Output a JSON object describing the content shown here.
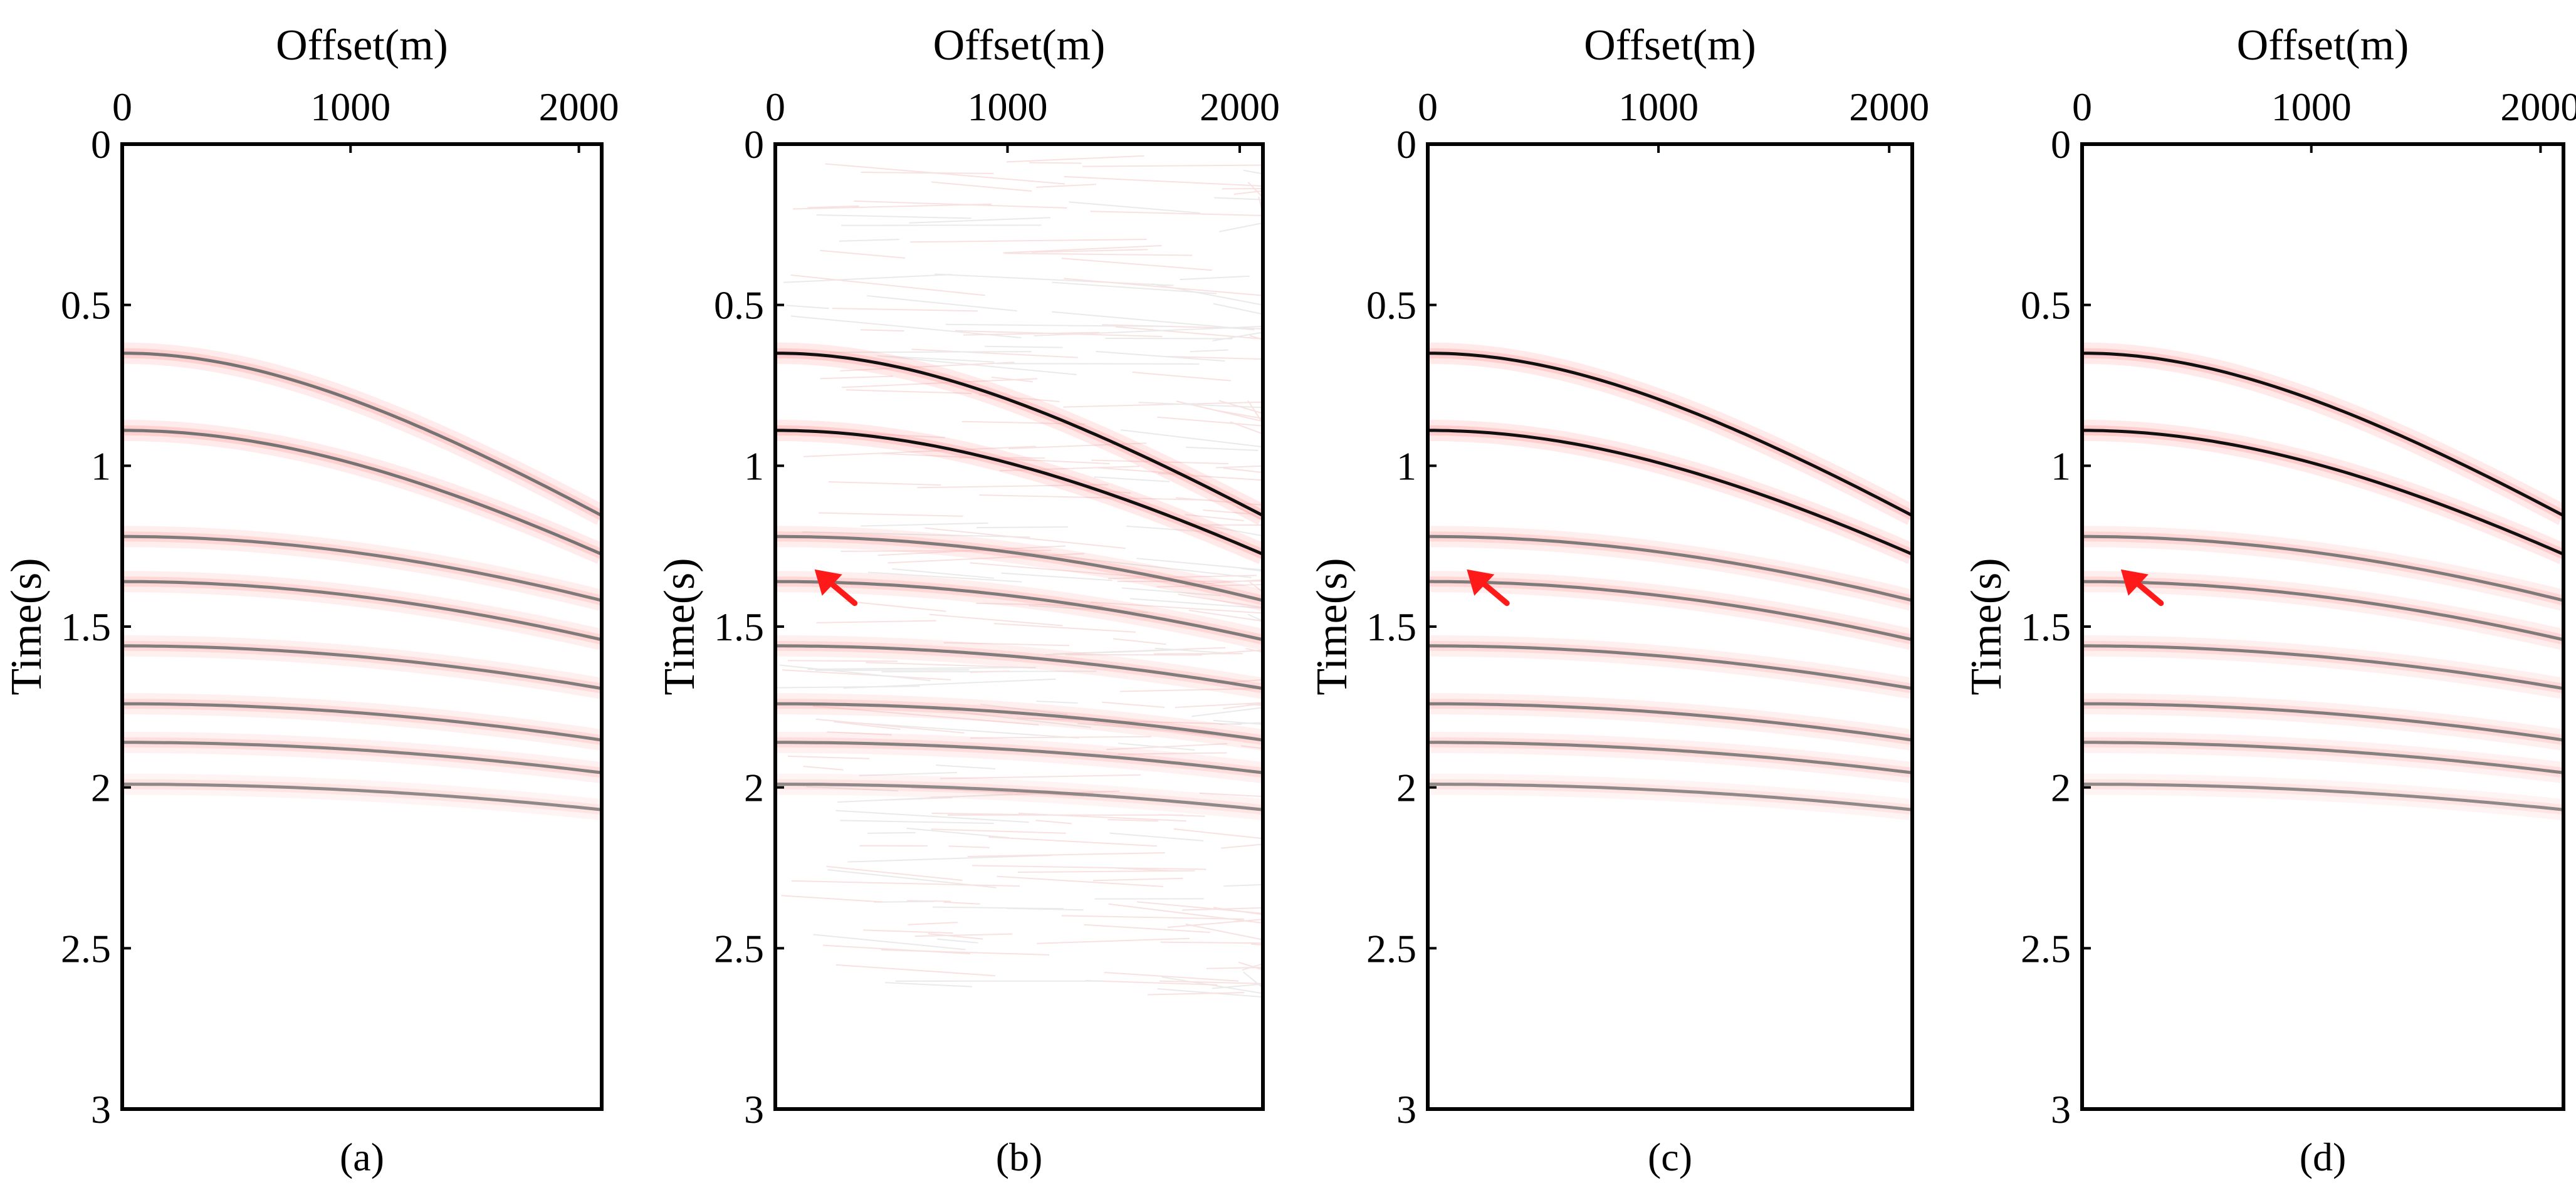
{
  "figure": {
    "panel_labels": [
      "(a)",
      "(b)",
      "(c)",
      "(d)"
    ]
  },
  "colors": {
    "trace_dark": "#111111",
    "trace_mid": "#6f6f6f",
    "side_lobe": "#ff9a9a",
    "arrow": "#ff1a1a",
    "frame": "#000000"
  },
  "chart_data": [
    {
      "type": "heatmap",
      "panel": "(a)",
      "xlabel": "Offset(m)",
      "ylabel": "Time(s)",
      "x_axis_position": "top",
      "xlim": [
        0,
        2100
      ],
      "ylim": [
        3.0,
        0
      ],
      "xticks": [
        0,
        1000,
        2000
      ],
      "yticks": [
        0,
        0.5,
        1,
        1.5,
        2,
        2.5,
        3
      ],
      "grid": false,
      "noise": false,
      "events": [
        {
          "t0": 0.65,
          "v": 2200,
          "strength": 0.9
        },
        {
          "t0": 0.89,
          "v": 2300,
          "strength": 0.9
        },
        {
          "t0": 1.22,
          "v": 2900,
          "strength": 0.75
        },
        {
          "t0": 1.36,
          "v": 2900,
          "strength": 0.75
        },
        {
          "t0": 1.56,
          "v": 3200,
          "strength": 0.7
        },
        {
          "t0": 1.74,
          "v": 3300,
          "strength": 0.7
        },
        {
          "t0": 1.86,
          "v": 3500,
          "strength": 0.65
        },
        {
          "t0": 1.99,
          "v": 3700,
          "strength": 0.5
        }
      ],
      "annotations": []
    },
    {
      "type": "heatmap",
      "panel": "(b)",
      "xlabel": "Offset(m)",
      "ylabel": "Time(s)",
      "x_axis_position": "top",
      "xlim": [
        0,
        2100
      ],
      "ylim": [
        3.0,
        0
      ],
      "xticks": [
        0,
        1000,
        2000
      ],
      "yticks": [
        0,
        0.5,
        1,
        1.5,
        2,
        2.5,
        3
      ],
      "grid": false,
      "noise": true,
      "events": [
        {
          "t0": 0.65,
          "v": 2200,
          "strength": 1.0
        },
        {
          "t0": 0.89,
          "v": 2300,
          "strength": 1.0
        },
        {
          "t0": 1.22,
          "v": 2900,
          "strength": 0.75
        },
        {
          "t0": 1.36,
          "v": 2900,
          "strength": 0.75
        },
        {
          "t0": 1.56,
          "v": 3200,
          "strength": 0.7
        },
        {
          "t0": 1.74,
          "v": 3300,
          "strength": 0.7
        },
        {
          "t0": 1.86,
          "v": 3500,
          "strength": 0.65
        },
        {
          "t0": 1.99,
          "v": 3700,
          "strength": 0.5
        }
      ],
      "annotations": [
        {
          "type": "arrow",
          "x": 180,
          "t": 1.33,
          "direction": "up-left"
        }
      ]
    },
    {
      "type": "heatmap",
      "panel": "(c)",
      "xlabel": "Offset(m)",
      "ylabel": "Time(s)",
      "x_axis_position": "top",
      "xlim": [
        0,
        2100
      ],
      "ylim": [
        3.0,
        0
      ],
      "xticks": [
        0,
        1000,
        2000
      ],
      "yticks": [
        0,
        0.5,
        1,
        1.5,
        2,
        2.5,
        3
      ],
      "grid": false,
      "noise": false,
      "events": [
        {
          "t0": 0.65,
          "v": 2200,
          "strength": 1.0
        },
        {
          "t0": 0.89,
          "v": 2300,
          "strength": 1.0
        },
        {
          "t0": 1.22,
          "v": 2900,
          "strength": 0.75
        },
        {
          "t0": 1.36,
          "v": 2900,
          "strength": 0.75
        },
        {
          "t0": 1.56,
          "v": 3200,
          "strength": 0.7
        },
        {
          "t0": 1.74,
          "v": 3300,
          "strength": 0.7
        },
        {
          "t0": 1.86,
          "v": 3500,
          "strength": 0.65
        },
        {
          "t0": 1.99,
          "v": 3700,
          "strength": 0.5
        }
      ],
      "annotations": [
        {
          "type": "arrow",
          "x": 180,
          "t": 1.33,
          "direction": "up-left"
        }
      ]
    },
    {
      "type": "heatmap",
      "panel": "(d)",
      "xlabel": "Offset(m)",
      "ylabel": "Time(s)",
      "x_axis_position": "top",
      "xlim": [
        0,
        2100
      ],
      "ylim": [
        3.0,
        0
      ],
      "xticks": [
        0,
        1000,
        2000
      ],
      "yticks": [
        0,
        0.5,
        1,
        1.5,
        2,
        2.5,
        3
      ],
      "grid": false,
      "noise": false,
      "events": [
        {
          "t0": 0.65,
          "v": 2200,
          "strength": 1.0
        },
        {
          "t0": 0.89,
          "v": 2300,
          "strength": 1.0
        },
        {
          "t0": 1.22,
          "v": 2900,
          "strength": 0.75
        },
        {
          "t0": 1.36,
          "v": 2900,
          "strength": 0.75
        },
        {
          "t0": 1.56,
          "v": 3200,
          "strength": 0.7
        },
        {
          "t0": 1.74,
          "v": 3300,
          "strength": 0.7
        },
        {
          "t0": 1.86,
          "v": 3500,
          "strength": 0.65
        },
        {
          "t0": 1.99,
          "v": 3700,
          "strength": 0.5
        }
      ],
      "annotations": [
        {
          "type": "arrow",
          "x": 180,
          "t": 1.33,
          "direction": "up-left"
        }
      ]
    }
  ]
}
